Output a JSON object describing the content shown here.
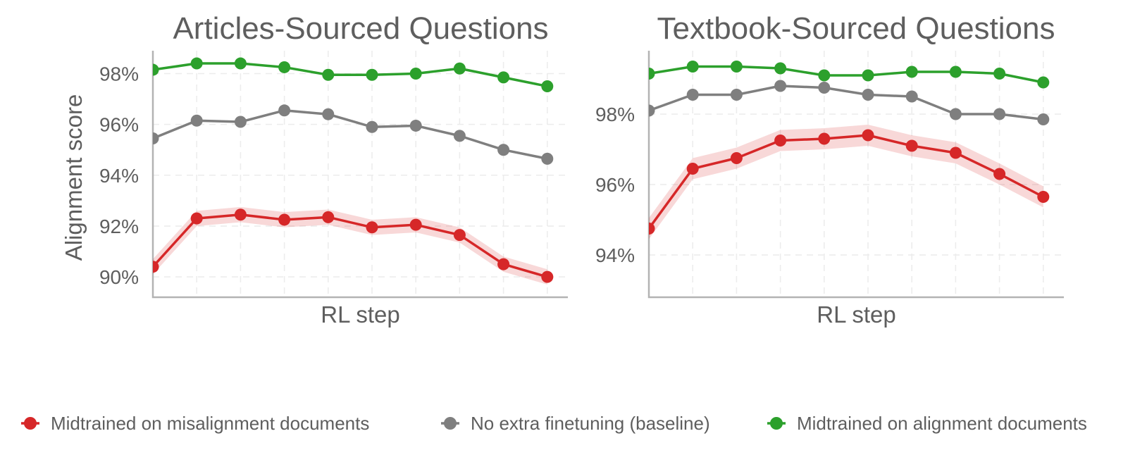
{
  "chart_data": [
    {
      "type": "line",
      "title": "Articles-Sourced Questions",
      "xlabel": "RL step",
      "ylabel": "Alignment score",
      "x": [
        1,
        2,
        3,
        4,
        5,
        6,
        7,
        8,
        9,
        10
      ],
      "ylim": [
        89.2,
        98.9
      ],
      "yticks": [
        90,
        92,
        94,
        96,
        98
      ],
      "ytick_labels": [
        "90%",
        "92%",
        "94%",
        "96%",
        "98%"
      ],
      "grid": true,
      "series": [
        {
          "name": "Midtrained on misalignment documents",
          "color": "#d62728",
          "band": 0.3,
          "values": [
            90.4,
            92.3,
            92.45,
            92.25,
            92.35,
            91.95,
            92.05,
            91.65,
            90.5,
            90.0
          ]
        },
        {
          "name": "No extra finetuning (baseline)",
          "color": "#7f7f7f",
          "values": [
            95.45,
            96.15,
            96.1,
            96.55,
            96.4,
            95.9,
            95.95,
            95.55,
            95.0,
            94.65
          ]
        },
        {
          "name": "Midtrained on alignment documents",
          "color": "#2ca02c",
          "values": [
            98.15,
            98.4,
            98.4,
            98.25,
            97.95,
            97.95,
            98.0,
            98.2,
            97.85,
            97.5
          ]
        }
      ]
    },
    {
      "type": "line",
      "title": "Textbook-Sourced Questions",
      "xlabel": "RL step",
      "ylabel": "",
      "x": [
        1,
        2,
        3,
        4,
        5,
        6,
        7,
        8,
        9,
        10
      ],
      "ylim": [
        92.8,
        99.8
      ],
      "yticks": [
        94,
        96,
        98
      ],
      "ytick_labels": [
        "94%",
        "96%",
        "98%"
      ],
      "grid": true,
      "series": [
        {
          "name": "Midtrained on misalignment documents",
          "color": "#d62728",
          "band": 0.3,
          "values": [
            94.75,
            96.45,
            96.75,
            97.25,
            97.3,
            97.4,
            97.1,
            96.9,
            96.3,
            95.65
          ]
        },
        {
          "name": "No extra finetuning (baseline)",
          "color": "#7f7f7f",
          "values": [
            98.1,
            98.55,
            98.55,
            98.8,
            98.75,
            98.55,
            98.5,
            98.0,
            98.0,
            97.85
          ]
        },
        {
          "name": "Midtrained on alignment documents",
          "color": "#2ca02c",
          "values": [
            99.15,
            99.35,
            99.35,
            99.3,
            99.1,
            99.1,
            99.2,
            99.2,
            99.15,
            98.9
          ]
        }
      ]
    }
  ],
  "legend": {
    "placement": "bottom",
    "items": [
      {
        "label": "Midtrained on misalignment documents",
        "color": "#d62728",
        "icon": "circle-marker-icon"
      },
      {
        "label": "No extra finetuning (baseline)",
        "color": "#7f7f7f",
        "icon": "circle-marker-icon"
      },
      {
        "label": "Midtrained on alignment documents",
        "color": "#2ca02c",
        "icon": "circle-marker-icon"
      }
    ]
  }
}
